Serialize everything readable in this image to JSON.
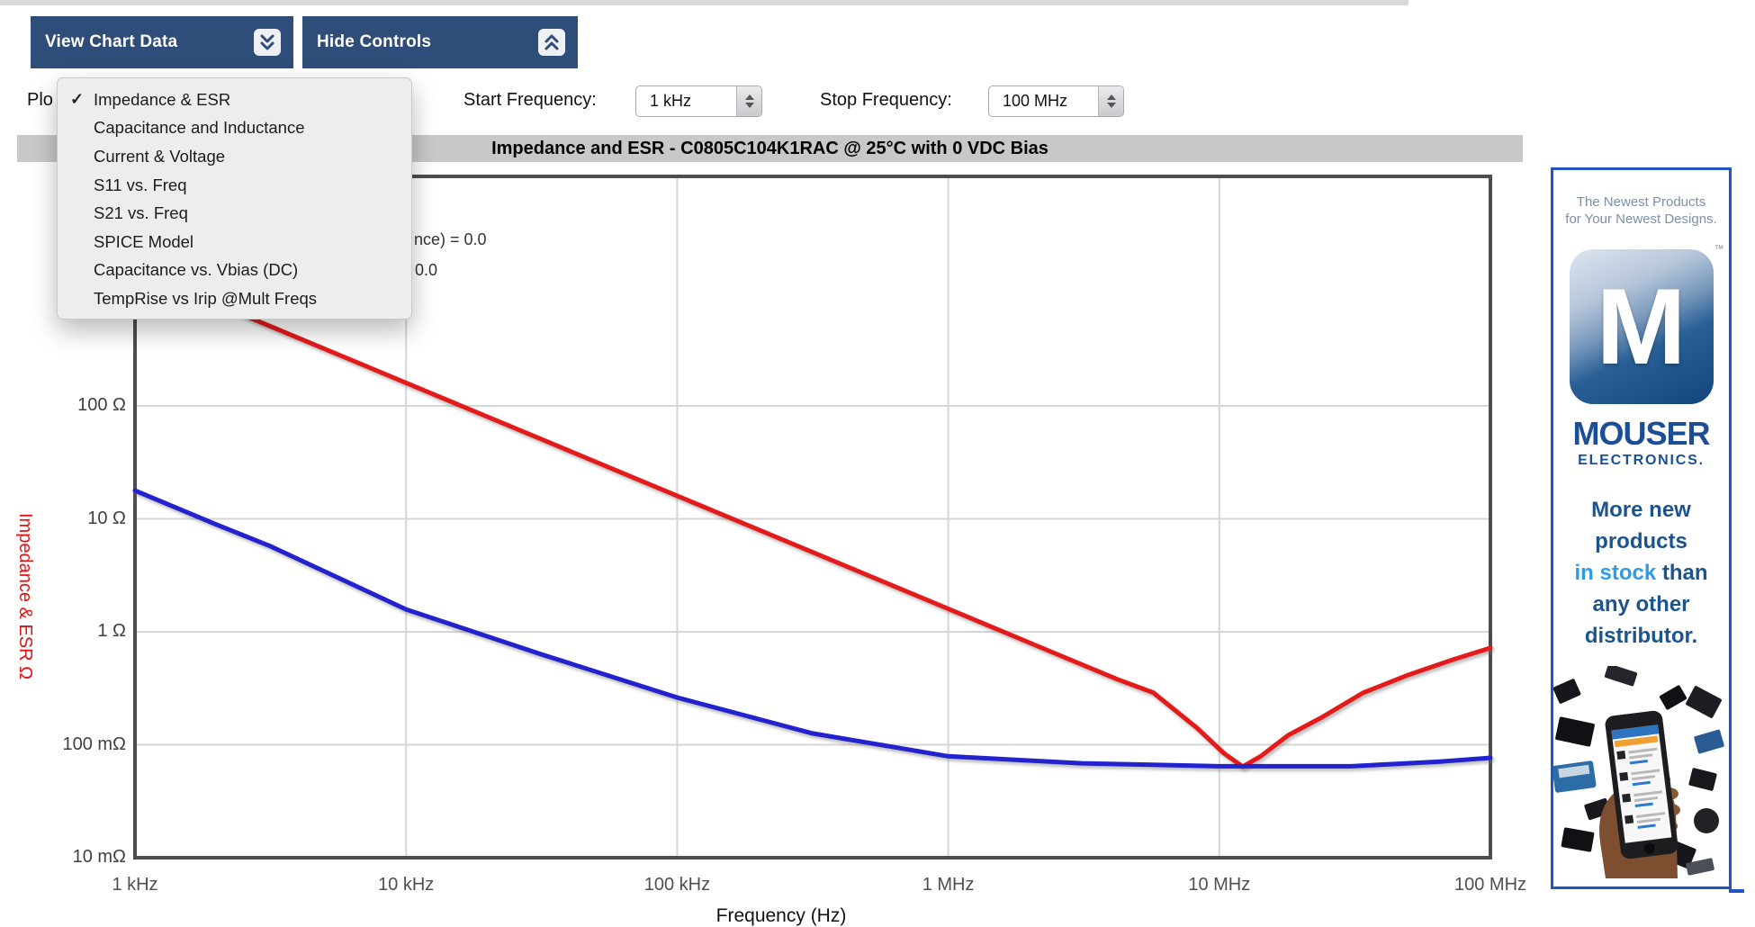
{
  "toolbar": {
    "view_chart_data": "View Chart Data",
    "hide_controls": "Hide Controls"
  },
  "plot_menu": {
    "clipped_label": "Plo",
    "checkmark": "✓",
    "items": [
      {
        "label": "Impedance & ESR",
        "checked": true
      },
      {
        "label": "Capacitance and Inductance",
        "checked": false
      },
      {
        "label": "Current & Voltage",
        "checked": false
      },
      {
        "label": "S11 vs. Freq",
        "checked": false
      },
      {
        "label": "S21 vs. Freq",
        "checked": false
      },
      {
        "label": "SPICE Model",
        "checked": false
      },
      {
        "label": "Capacitance vs. Vbias (DC)",
        "checked": false
      },
      {
        "label": "TempRise vs Irip @Mult Freqs",
        "checked": false
      }
    ]
  },
  "controls": {
    "start_frequency_label": "Start Frequency:",
    "start_frequency_value": "1 kHz",
    "stop_frequency_label": "Stop Frequency:",
    "stop_frequency_value": "100 MHz"
  },
  "chart": {
    "title": "Impedance and ESR - C0805C104K1RAC @ 25°C with 0 VDC Bias",
    "annotation_fragments": [
      "nce) = 0.0",
      "0.0"
    ],
    "colors": {
      "impedance": "#e51a1a",
      "esr": "#2222cf",
      "grid": "#d6d6d6",
      "frame": "#4d4d4d"
    }
  },
  "chart_data": {
    "type": "line",
    "title": "Impedance and ESR - C0805C104K1RAC @ 25°C with 0 VDC Bias",
    "xlabel": "Frequency (Hz)",
    "ylabel": "Impedance & ESR Ω",
    "x_scale": "log",
    "y_scale": "log",
    "grid": true,
    "x_range_hz": [
      1000,
      100000000
    ],
    "y_range_ohm": [
      0.01,
      10800
    ],
    "x_ticks": [
      {
        "hz": 1000,
        "label": "1 kHz"
      },
      {
        "hz": 10000,
        "label": "10 kHz"
      },
      {
        "hz": 100000,
        "label": "100 kHz"
      },
      {
        "hz": 1000000,
        "label": "1 MHz"
      },
      {
        "hz": 10000000,
        "label": "10 MHz"
      },
      {
        "hz": 100000000,
        "label": "100 MHz"
      }
    ],
    "y_ticks": [
      {
        "ohm": 100,
        "label": "100 Ω"
      },
      {
        "ohm": 10,
        "label": "10 Ω"
      },
      {
        "ohm": 1,
        "label": "1 Ω"
      },
      {
        "ohm": 0.1,
        "label": "100 mΩ"
      },
      {
        "ohm": 0.01,
        "label": "10 mΩ"
      }
    ],
    "series": [
      {
        "name": "Impedance",
        "color": "#e51a1a",
        "points_hz_ohm": [
          [
            1000,
            1600
          ],
          [
            3160,
            506
          ],
          [
            10000,
            160
          ],
          [
            31600,
            50.6
          ],
          [
            100000,
            16
          ],
          [
            316000,
            5.06
          ],
          [
            1000000,
            1.6
          ],
          [
            2100000,
            0.76
          ],
          [
            4200000,
            0.38
          ],
          [
            5700000,
            0.29
          ],
          [
            8300000,
            0.14
          ],
          [
            10400000,
            0.084
          ],
          [
            12200000,
            0.064
          ],
          [
            14200000,
            0.079
          ],
          [
            17900000,
            0.121
          ],
          [
            23900000,
            0.175
          ],
          [
            33800000,
            0.287
          ],
          [
            49600000,
            0.414
          ],
          [
            72600000,
            0.566
          ],
          [
            100000000,
            0.72
          ]
        ]
      },
      {
        "name": "ESR",
        "color": "#2222cf",
        "points_hz_ohm": [
          [
            1000,
            17.8
          ],
          [
            2000,
            8.9
          ],
          [
            3170,
            5.7
          ],
          [
            10000,
            1.58
          ],
          [
            31700,
            0.63
          ],
          [
            100000,
            0.262
          ],
          [
            316000,
            0.126
          ],
          [
            1000000,
            0.079
          ],
          [
            3100000,
            0.0685
          ],
          [
            10000000,
            0.0645
          ],
          [
            30600000,
            0.0645
          ],
          [
            65000000,
            0.071
          ],
          [
            100000000,
            0.0766
          ]
        ]
      }
    ]
  },
  "ad": {
    "top_lines": [
      "The Newest Products",
      "for Your Newest Designs."
    ],
    "logo_letter": "M",
    "trademark": "™",
    "brand": "MOUSER",
    "brand_sub": "ELECTRONICS.",
    "message": [
      [
        {
          "t": "More new",
          "hl": false
        }
      ],
      [
        {
          "t": "products",
          "hl": false
        }
      ],
      [
        {
          "t": "in stock",
          "hl": true
        },
        {
          "t": " than",
          "hl": false
        }
      ],
      [
        {
          "t": "any other",
          "hl": false
        }
      ],
      [
        {
          "t": "distributor.",
          "hl": false
        }
      ]
    ],
    "colors": {
      "navy": "#1c548e",
      "accent": "#2d9be5",
      "border": "#1e56c6"
    }
  }
}
